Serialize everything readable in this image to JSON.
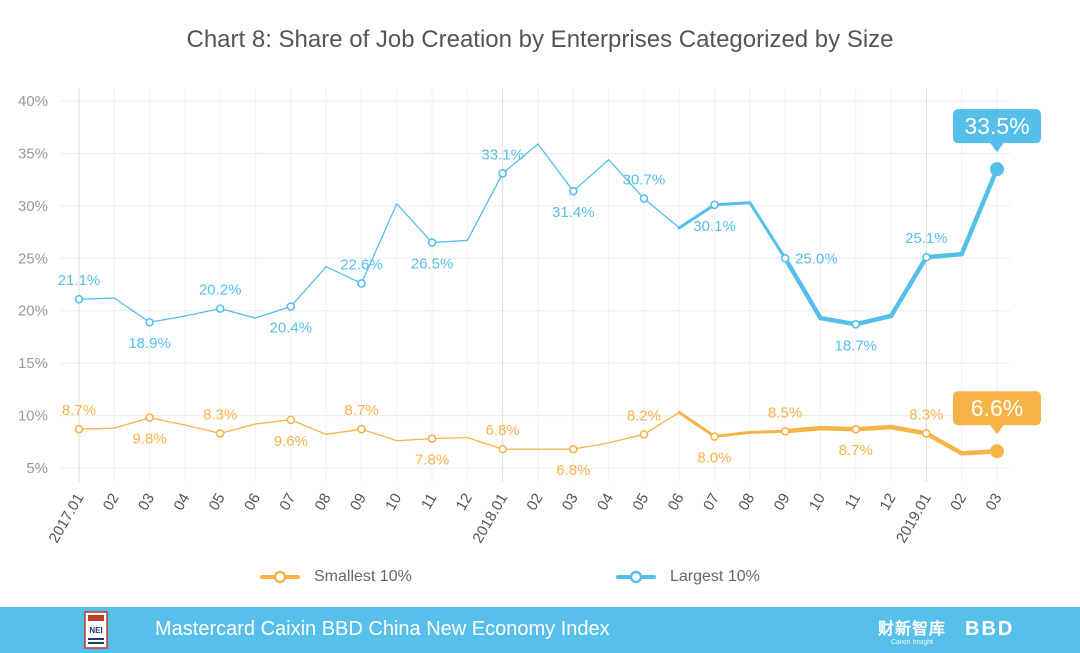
{
  "chart_data": {
    "type": "line",
    "title": "Chart 8: Share of Job Creation by Enterprises Categorized by Size",
    "xlabel": "",
    "ylabel": "",
    "categories": [
      "2017.01",
      "02",
      "03",
      "04",
      "05",
      "06",
      "07",
      "08",
      "09",
      "10",
      "11",
      "12",
      "2018.01",
      "02",
      "03",
      "04",
      "05",
      "06",
      "07",
      "08",
      "09",
      "10",
      "11",
      "12",
      "2019.01",
      "02",
      "03"
    ],
    "y_ticks": [
      "5%",
      "10%",
      "15%",
      "20%",
      "25%",
      "30%",
      "35%",
      "40%"
    ],
    "ylim": [
      3,
      41
    ],
    "grid": true,
    "legend_position": "bottom",
    "series": [
      {
        "name": "Largest 10%",
        "color": "#55bfea",
        "values": [
          21.1,
          21.2,
          18.9,
          19.5,
          20.2,
          19.3,
          20.4,
          24.2,
          22.6,
          30.2,
          26.5,
          26.7,
          33.1,
          35.9,
          31.4,
          34.4,
          30.7,
          27.9,
          30.1,
          30.3,
          25.0,
          19.3,
          18.7,
          19.5,
          25.1,
          25.4,
          33.5
        ],
        "labels": [
          {
            "index": 0,
            "text": "21.1%",
            "pos": "above"
          },
          {
            "index": 2,
            "text": "18.9%",
            "pos": "below"
          },
          {
            "index": 4,
            "text": "20.2%",
            "pos": "above"
          },
          {
            "index": 6,
            "text": "20.4%",
            "pos": "below"
          },
          {
            "index": 8,
            "text": "22.6%",
            "pos": "above"
          },
          {
            "index": 10,
            "text": "26.5%",
            "pos": "below"
          },
          {
            "index": 12,
            "text": "33.1%",
            "pos": "above"
          },
          {
            "index": 14,
            "text": "31.4%",
            "pos": "below"
          },
          {
            "index": 16,
            "text": "30.7%",
            "pos": "above"
          },
          {
            "index": 18,
            "text": "30.1%",
            "pos": "below"
          },
          {
            "index": 20,
            "text": "25.0%",
            "pos": "right"
          },
          {
            "index": 22,
            "text": "18.7%",
            "pos": "below"
          },
          {
            "index": 24,
            "text": "25.1%",
            "pos": "above"
          }
        ],
        "callout": "33.5%"
      },
      {
        "name": "Smallest 10%",
        "color": "#f6b348",
        "values": [
          8.7,
          8.8,
          9.8,
          9.1,
          8.3,
          9.2,
          9.6,
          8.2,
          8.7,
          7.6,
          7.8,
          7.9,
          6.8,
          6.8,
          6.8,
          7.4,
          8.2,
          10.3,
          8.0,
          8.4,
          8.5,
          8.8,
          8.7,
          8.9,
          8.3,
          6.4,
          6.6
        ],
        "labels": [
          {
            "index": 0,
            "text": "8.7%",
            "pos": "above"
          },
          {
            "index": 2,
            "text": "9.8%",
            "pos": "below"
          },
          {
            "index": 4,
            "text": "8.3%",
            "pos": "above"
          },
          {
            "index": 6,
            "text": "9.6%",
            "pos": "below"
          },
          {
            "index": 8,
            "text": "8.7%",
            "pos": "above"
          },
          {
            "index": 10,
            "text": "7.8%",
            "pos": "below"
          },
          {
            "index": 12,
            "text": "6.8%",
            "pos": "above"
          },
          {
            "index": 14,
            "text": "6.8%",
            "pos": "below"
          },
          {
            "index": 16,
            "text": "8.2%",
            "pos": "above"
          },
          {
            "index": 18,
            "text": "8.0%",
            "pos": "below"
          },
          {
            "index": 20,
            "text": "8.5%",
            "pos": "above"
          },
          {
            "index": 22,
            "text": "8.7%",
            "pos": "below"
          },
          {
            "index": 24,
            "text": "8.3%",
            "pos": "above"
          }
        ],
        "callout": "6.6%"
      }
    ]
  },
  "legend": {
    "smallest_label": "Smallest 10%",
    "largest_label": "Largest 10%"
  },
  "footer": {
    "tagline": "Mastercard Caixin BBD China New Economy Index",
    "logo_caixin": "财新智库",
    "logo_caixin_sub": "Caixin Insight",
    "logo_bbd": "BBD",
    "logo_left_text": "NEI",
    "background": "#57c0ea"
  }
}
